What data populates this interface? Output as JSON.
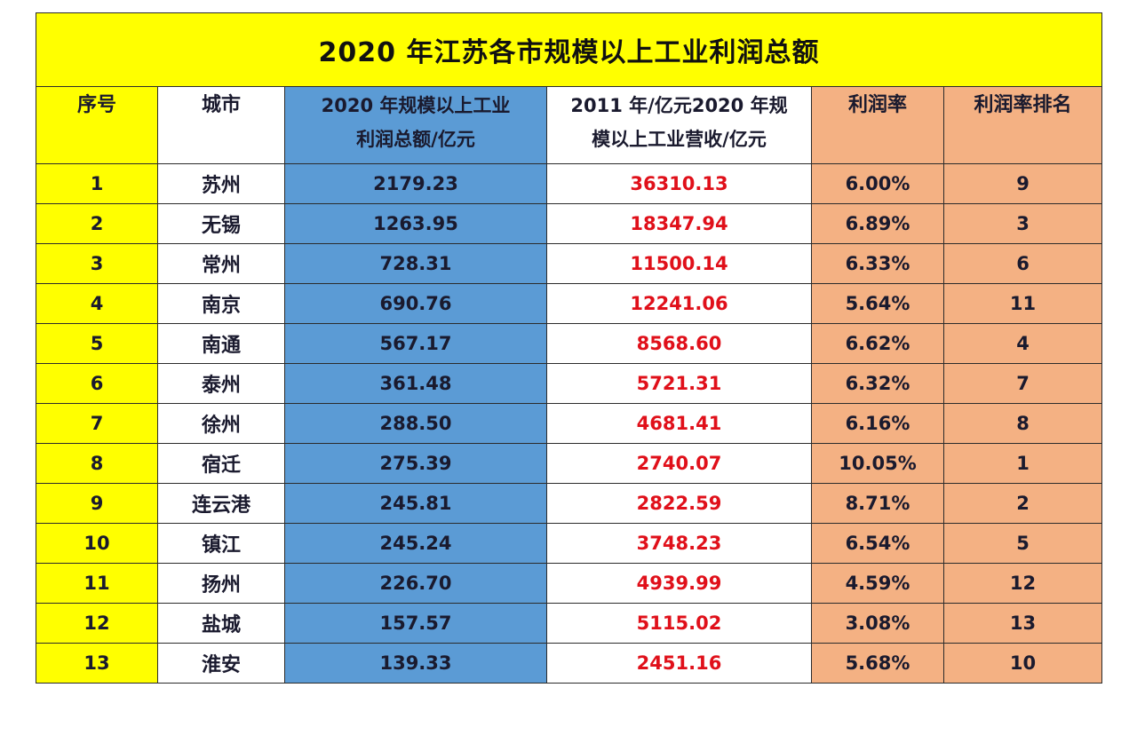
{
  "title": "2020 年江苏各市规模以上工业利润总额",
  "headers": {
    "no": "序号",
    "city": "城市",
    "profit_line1": "2020 年规模以上工业",
    "profit_line2": "利润总额/亿元",
    "revenue_line1": "2011 年/亿元2020 年规",
    "revenue_line2": "模以上工业营收/亿元",
    "rate": "利润率",
    "rank": "利润率排名"
  },
  "rows": [
    {
      "no": "1",
      "city": "苏州",
      "profit": "2179.23",
      "revenue": "36310.13",
      "rate": "6.00%",
      "rank": "9"
    },
    {
      "no": "2",
      "city": "无锡",
      "profit": "1263.95",
      "revenue": "18347.94",
      "rate": "6.89%",
      "rank": "3"
    },
    {
      "no": "3",
      "city": "常州",
      "profit": "728.31",
      "revenue": "11500.14",
      "rate": "6.33%",
      "rank": "6"
    },
    {
      "no": "4",
      "city": "南京",
      "profit": "690.76",
      "revenue": "12241.06",
      "rate": "5.64%",
      "rank": "11"
    },
    {
      "no": "5",
      "city": "南通",
      "profit": "567.17",
      "revenue": "8568.60",
      "rate": "6.62%",
      "rank": "4"
    },
    {
      "no": "6",
      "city": "泰州",
      "profit": "361.48",
      "revenue": "5721.31",
      "rate": "6.32%",
      "rank": "7"
    },
    {
      "no": "7",
      "city": "徐州",
      "profit": "288.50",
      "revenue": "4681.41",
      "rate": "6.16%",
      "rank": "8"
    },
    {
      "no": "8",
      "city": "宿迁",
      "profit": "275.39",
      "revenue": "2740.07",
      "rate": "10.05%",
      "rank": "1"
    },
    {
      "no": "9",
      "city": "连云港",
      "profit": "245.81",
      "revenue": "2822.59",
      "rate": "8.71%",
      "rank": "2"
    },
    {
      "no": "10",
      "city": "镇江",
      "profit": "245.24",
      "revenue": "3748.23",
      "rate": "6.54%",
      "rank": "5"
    },
    {
      "no": "11",
      "city": "扬州",
      "profit": "226.70",
      "revenue": "4939.99",
      "rate": "4.59%",
      "rank": "12"
    },
    {
      "no": "12",
      "city": "盐城",
      "profit": "157.57",
      "revenue": "5115.02",
      "rate": "3.08%",
      "rank": "13"
    },
    {
      "no": "13",
      "city": "淮安",
      "profit": "139.33",
      "revenue": "2451.16",
      "rate": "5.68%",
      "rank": "10"
    }
  ],
  "colors": {
    "title_bg": "#ffff00",
    "no_col_bg": "#ffff00",
    "profit_col_bg": "#5b9bd5",
    "rate_col_bg": "#f4b183",
    "revenue_text": "#e0101a"
  }
}
